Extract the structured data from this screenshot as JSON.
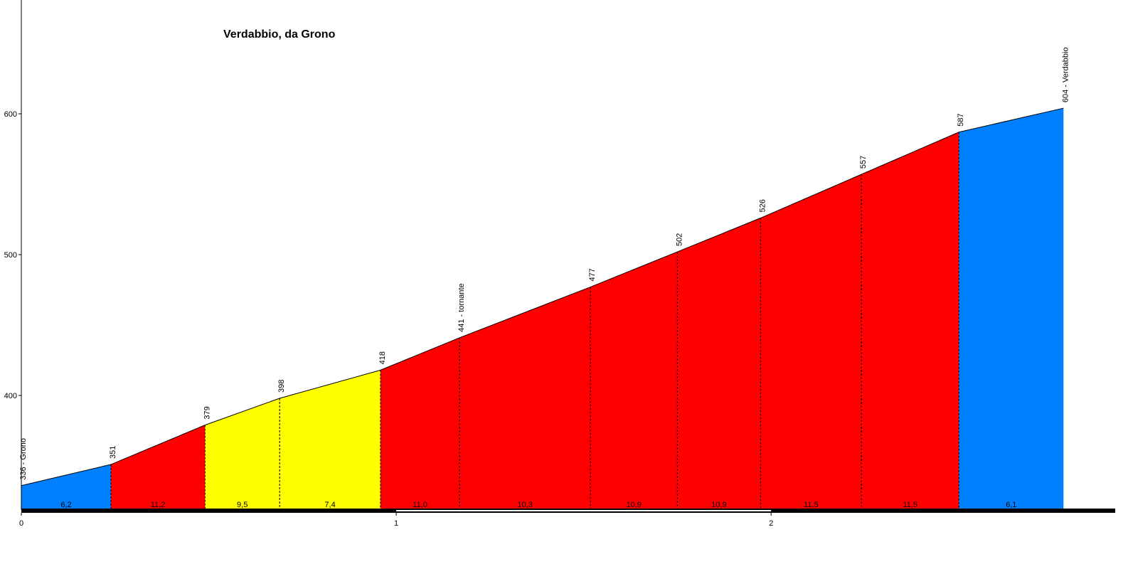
{
  "chart_data": {
    "type": "profile",
    "title": "Verdabbio, da Grono",
    "x": [
      0,
      0.239,
      0.49,
      0.689,
      0.958,
      1.169,
      1.518,
      1.75,
      1.972,
      2.241,
      2.501,
      2.78
    ],
    "values": [
      336,
      351,
      379,
      398,
      418,
      441,
      477,
      502,
      526,
      557,
      587,
      604
    ],
    "value_labels": [
      "336 - Grono",
      "351",
      "379",
      "398",
      "418",
      "441 - tornante",
      "477",
      "502",
      "526",
      "557",
      "587",
      "604 - Verdabbio"
    ],
    "gradients": {
      "values": [
        6.2,
        11.2,
        9.5,
        7.4,
        11.0,
        10.3,
        10.9,
        10.9,
        11.5,
        11.5,
        6.1
      ],
      "value_labels": [
        "6,2",
        "11,2",
        "9,5",
        "7,4",
        "11,0",
        "10,3",
        "10,9",
        "10,9",
        "11,5",
        "11,5",
        "6,1"
      ],
      "colors": [
        "#0080ff",
        "#ff0000",
        "#ffff00",
        "#ffff00",
        "#ff0000",
        "#ff0000",
        "#ff0000",
        "#ff0000",
        "#ff0000",
        "#ff0000",
        "#0080ff"
      ]
    },
    "xlim": [
      0,
      2.918
    ],
    "xticks": [
      0,
      1,
      2
    ],
    "ylim": [
      318.7,
      680.8
    ],
    "yticks": [
      400,
      500,
      600
    ]
  }
}
